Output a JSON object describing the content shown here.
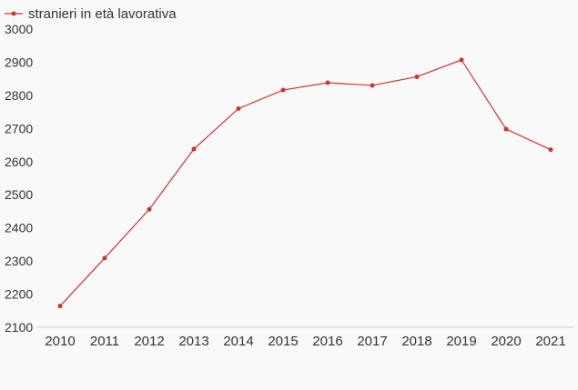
{
  "chart_data": {
    "type": "line",
    "categories": [
      "2010",
      "2011",
      "2012",
      "2013",
      "2014",
      "2015",
      "2016",
      "2017",
      "2018",
      "2019",
      "2020",
      "2021"
    ],
    "series": [
      {
        "name": "stranieri in età lavorativa",
        "color": "#cc3333",
        "values": [
          2164,
          2309,
          2456,
          2638,
          2760,
          2816,
          2838,
          2830,
          2856,
          2907,
          2698,
          2636
        ]
      }
    ],
    "y_ticks": [
      "2100",
      "2200",
      "2300",
      "2400",
      "2500",
      "2600",
      "2700",
      "2800",
      "2900",
      "3000"
    ],
    "ylim": [
      2100,
      3000
    ],
    "grid": false,
    "legend_position": "top-left"
  }
}
